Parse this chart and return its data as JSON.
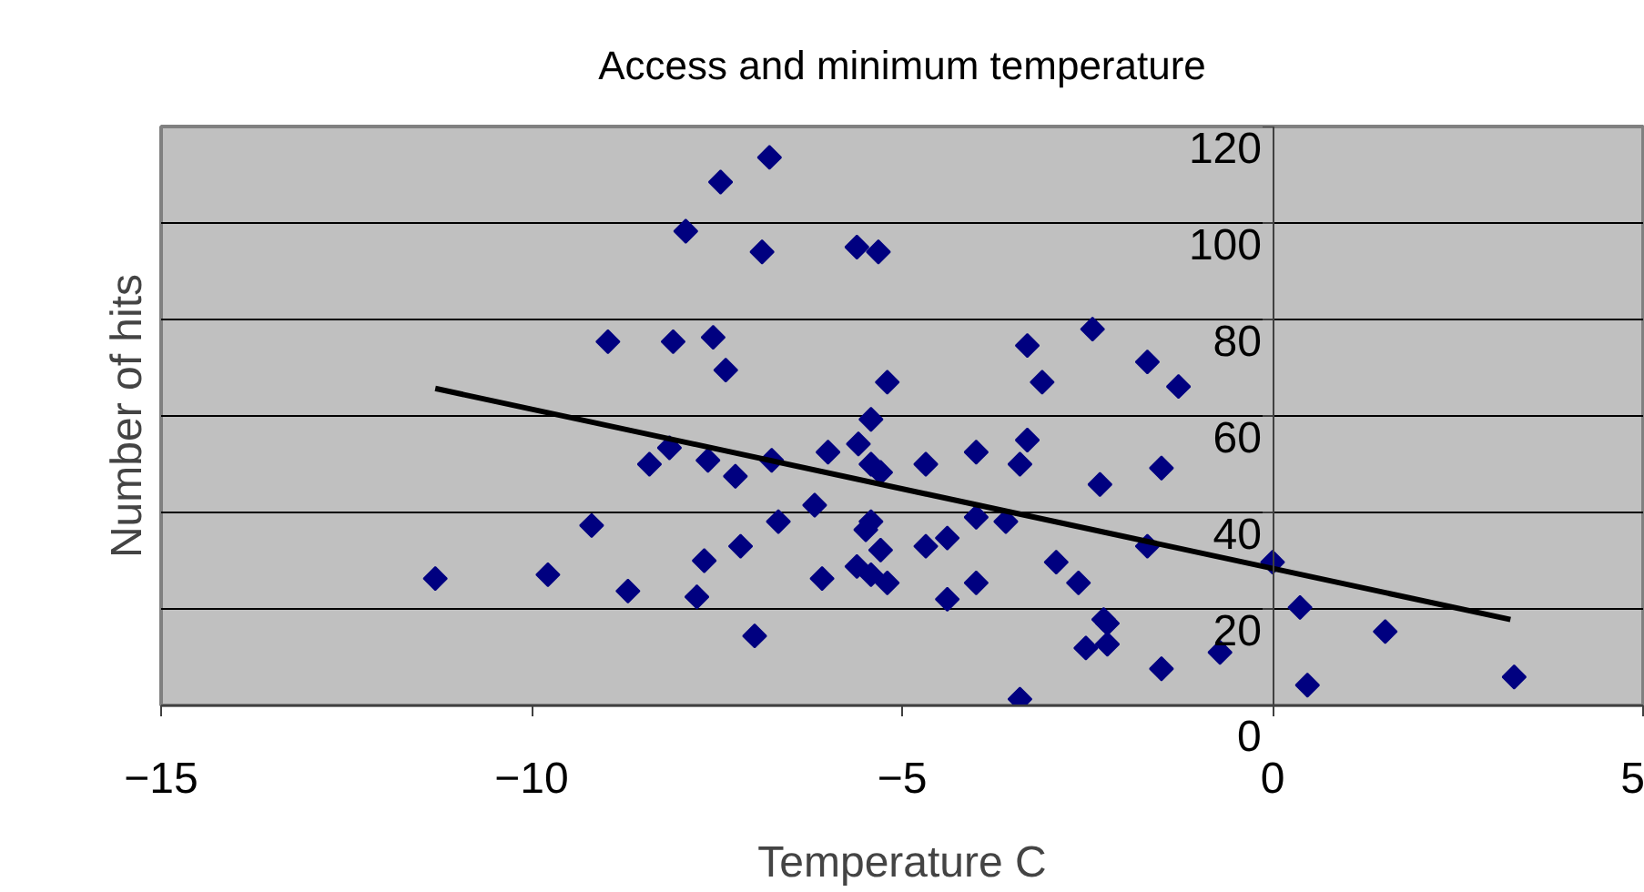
{
  "chart_data": {
    "type": "scatter",
    "title": "Access and minimum temperature",
    "xlabel": "Temperature C",
    "ylabel": "Number of hits",
    "xlim": [
      -15,
      5
    ],
    "ylim": [
      0,
      120
    ],
    "xticks": [
      -15,
      -10,
      -5,
      0,
      5
    ],
    "yticks": [
      0,
      20,
      40,
      60,
      80,
      100,
      120
    ],
    "grid": "y",
    "legend": false,
    "marker": "diamond",
    "series": [
      {
        "color": "#000080",
        "x": [
          -11.3,
          -9.78,
          -9.19,
          -8.7,
          -8.97,
          -8.41,
          -8.14,
          -8.09,
          -7.92,
          -7.77,
          -7.67,
          -7.62,
          -7.55,
          -7.45,
          -7.38,
          -7.25,
          -7.18,
          -6.99,
          -6.89,
          -6.79,
          -6.76,
          -6.67,
          -6.18,
          -6.08,
          -6.0,
          -5.59,
          -5.61,
          -5.61,
          -5.49,
          -5.42,
          -5.42,
          -5.42,
          -5.42,
          -5.32,
          -5.29,
          -5.29,
          -5.2,
          -5.2,
          -4.68,
          -4.68,
          -4.39,
          -4.39,
          -4.0,
          -4.0,
          -4.0,
          -3.6,
          -3.41,
          -3.41,
          -3.31,
          -3.31,
          -3.11,
          -2.92,
          -2.62,
          -2.52,
          -2.43,
          -2.33,
          -2.28,
          -2.23,
          -2.23,
          -1.69,
          -1.69,
          -1.5,
          -1.5,
          -1.27,
          -0.71,
          0,
          0.37,
          0.47,
          1.52,
          3.26
        ],
        "values": [
          26.3,
          27.1,
          37.3,
          23.7,
          75.4,
          50,
          53.4,
          75.4,
          98.3,
          22.5,
          30,
          50.8,
          76.3,
          108.5,
          69.5,
          47.5,
          33,
          14.4,
          94,
          113.6,
          50.8,
          38.1,
          41.5,
          26.3,
          52.5,
          54.2,
          95,
          28.8,
          36.4,
          59.3,
          50,
          38.1,
          27.1,
          94,
          48.3,
          32.2,
          67,
          25.4,
          50,
          33,
          34.7,
          22,
          52.5,
          39,
          25.4,
          38.1,
          50,
          1.3,
          74.6,
          55,
          67,
          29.7,
          25.4,
          11.9,
          78,
          45.8,
          17.8,
          12.7,
          17,
          71.2,
          33,
          7.6,
          49.2,
          66.1,
          11,
          29.7,
          20.3,
          4.2,
          15.3,
          5.9
        ]
      },
      {
        "type": "line",
        "color": "#000000",
        "marker": "none",
        "line_style": "solid",
        "x": [
          -11.3,
          3.21
        ],
        "values": [
          65.7,
          17.8
        ]
      }
    ]
  }
}
